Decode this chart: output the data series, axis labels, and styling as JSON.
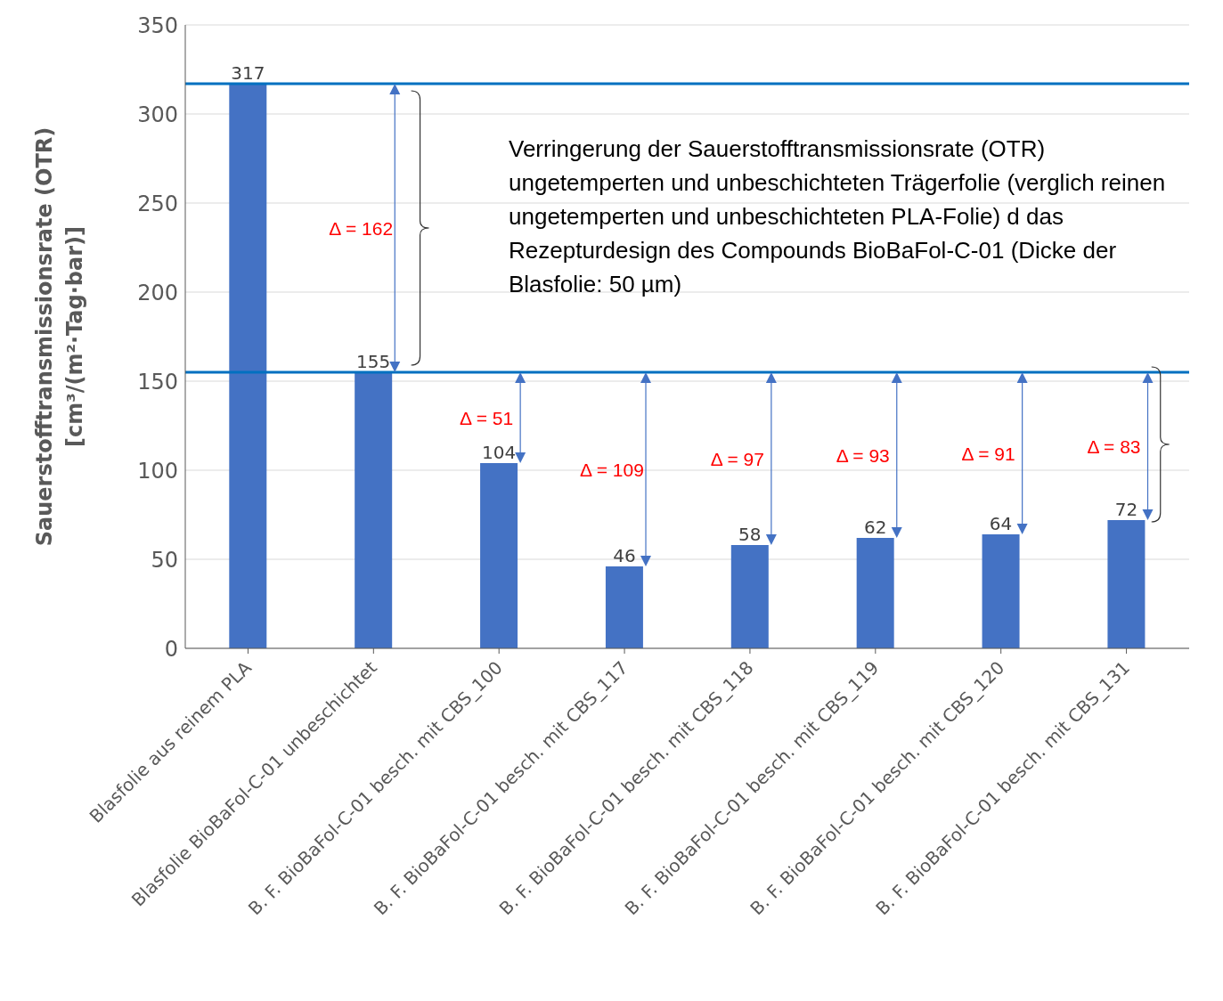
{
  "chart_data": {
    "type": "bar",
    "ylabel": "Sauerstofftransmissionsrate (OTR)\n[cm³/(m²·Tag·bar)]",
    "categories": [
      "Blasfolie aus reinem PLA",
      "Blasfolie BioBaFol-C-01 unbeschichtet",
      "B. F. BioBaFol-C-01 besch. mit CBS_100",
      "B. F. BioBaFol-C-01 besch. mit CBS_117",
      "B. F. BioBaFol-C-01 besch. mit CBS_118",
      "B. F. BioBaFol-C-01 besch. mit CBS_119",
      "B. F. BioBaFol-C-01 besch. mit CBS_120",
      "B. F. BioBaFol-C-01 besch. mit CBS_131"
    ],
    "values": [
      317,
      155,
      104,
      46,
      58,
      62,
      64,
      72
    ],
    "color": "#4472c4",
    "data_labels": true,
    "ylim": [
      0,
      350
    ],
    "yticks": [
      0,
      50,
      100,
      150,
      200,
      250,
      300,
      350
    ],
    "grid": "y",
    "ref_lines": [
      {
        "axis": "y",
        "value": 317,
        "color": "#0070c0"
      },
      {
        "axis": "y",
        "value": 155,
        "color": "#0070c0"
      }
    ],
    "annotations": [
      "Δ = 162",
      "Δ = 51",
      "Δ = 109",
      "Δ = 97",
      "Δ = 93",
      "Δ = 91",
      "Δ = 83",
      "Verringerung der Sauerstofftransmissionsrate (OTR) ungetemperten und unbeschichteten Trägerfolie (verglich reinen ungetemperten und unbeschichteten PLA-Folie) d das Rezepturdesign des Compounds BioBaFol-C-01 (Dicke der Blasfolie: 50 µm)"
    ]
  }
}
